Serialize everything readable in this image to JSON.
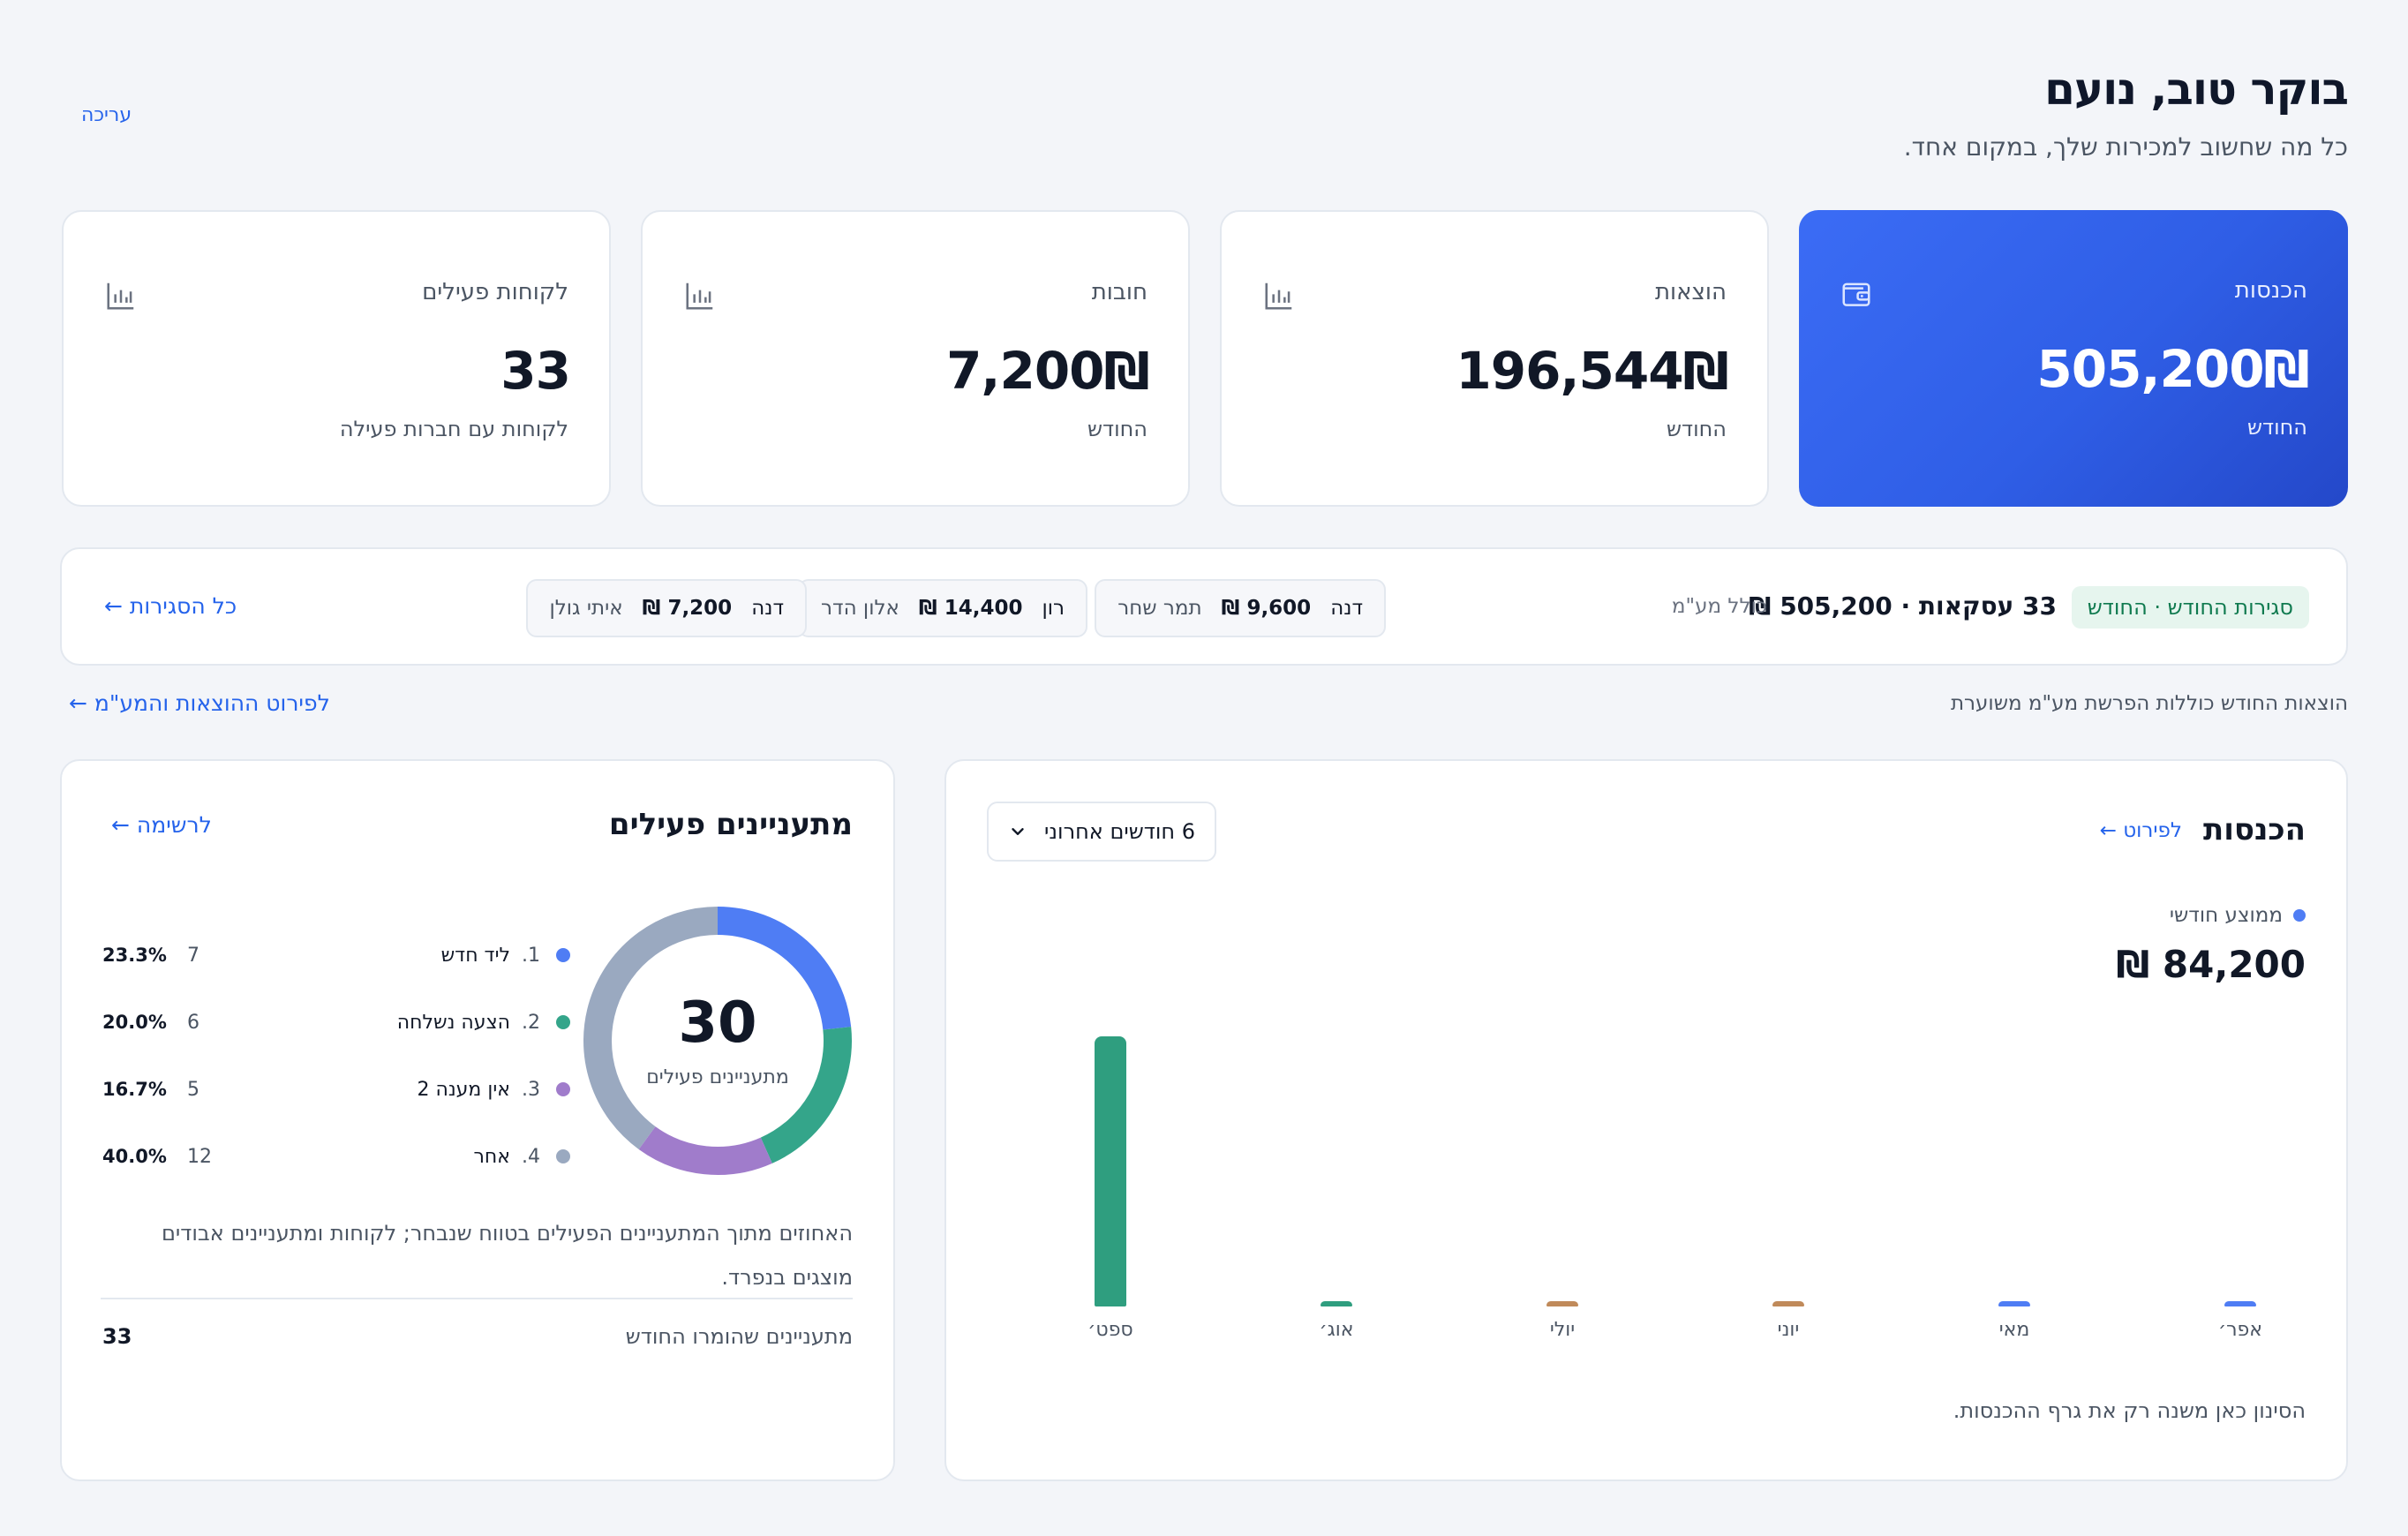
{
  "header": {
    "title": "בוקר טוב, נועם",
    "subtitle": "כל מה שחשוב למכירות שלך, במקום אחד.",
    "edit_label": "עריכה"
  },
  "stats": [
    {
      "label": "הכנסות",
      "value": "505,200₪",
      "sub": "החודש",
      "icon": "wallet-icon"
    },
    {
      "label": "הוצאות",
      "value": "196,544₪",
      "sub": "החודש",
      "icon": "bar-chart-icon"
    },
    {
      "label": "חובות",
      "value": "7,200₪",
      "sub": "החודש",
      "icon": "bar-chart-icon"
    },
    {
      "label": "לקוחות פעילים",
      "value": "33",
      "sub": "לקוחות עם חברות פעילה",
      "icon": "bar-chart-icon"
    }
  ],
  "closings": {
    "badge": "סגירות החודש · החודש",
    "total": "33 עסקאות · 505,200 ₪",
    "vat_note": "כולל מע\"מ",
    "items": [
      {
        "name": "דנה",
        "amount": "9,600 ₪",
        "client": "תמר שחר"
      },
      {
        "name": "רון",
        "amount": "14,400 ₪",
        "client": "אלון הדר"
      },
      {
        "name": "דנה",
        "amount": "7,200 ₪",
        "client": "איתי גולן"
      }
    ],
    "all_link": "כל הסגירות ←"
  },
  "expenses": {
    "note": "הוצאות החודש כוללות הפרשת מע\"מ משוערת",
    "link": "לפירוט ההוצאות והמע\"מ ←"
  },
  "revenue": {
    "title": "הכנסות",
    "detail_link": "לפירוט ←",
    "range_selected": "6 חודשים אחרוני",
    "avg_label": "ממוצע חודשי",
    "avg_value": "84,200 ₪",
    "footnote": "הסינון כאן משנה רק את גרף ההכנסות.",
    "colors": {
      "primary": "#4f7df4",
      "green": "#2f9e7f",
      "brown": "#c08a5a"
    }
  },
  "chart_data": {
    "type": "bar",
    "categories": [
      "אפר׳",
      "מאי",
      "יוני",
      "יולי",
      "אוג׳",
      "ספט׳"
    ],
    "values": [
      0,
      0,
      0,
      0,
      0,
      505200
    ],
    "bar_colors": [
      "#4f7df4",
      "#4f7df4",
      "#c08a5a",
      "#c08a5a",
      "#2f9e7f",
      "#2f9e7f"
    ],
    "title": "הכנסות",
    "xlabel": "",
    "ylabel": ""
  },
  "leads": {
    "title": "מתעניינים פעילים",
    "list_link": "לרשימה ←",
    "total": "30",
    "total_label": "מתעניינים פעילים",
    "segments": [
      {
        "index": "1.",
        "name": "ליד חדש",
        "count": "7",
        "pct": "23.3%",
        "value": 7,
        "color": "#4f7df4"
      },
      {
        "index": "2.",
        "name": "הצעה נשלחה",
        "count": "6",
        "pct": "20.0%",
        "value": 6,
        "color": "#34a58a"
      },
      {
        "index": "3.",
        "name": "אין מענה 2",
        "count": "5",
        "pct": "16.7%",
        "value": 5,
        "color": "#a07ccb"
      },
      {
        "index": "4.",
        "name": "אחר",
        "count": "12",
        "pct": "40.0%",
        "value": 12,
        "color": "#9aa9c0"
      }
    ],
    "description": "האחוזים מתוך המתעניינים הפעילים בטווח שנבחר; לקוחות ומתעניינים אבודים מוצגים בנפרד.",
    "footer_label": "מתעניינים שהומרו החודש",
    "footer_value": "33"
  }
}
